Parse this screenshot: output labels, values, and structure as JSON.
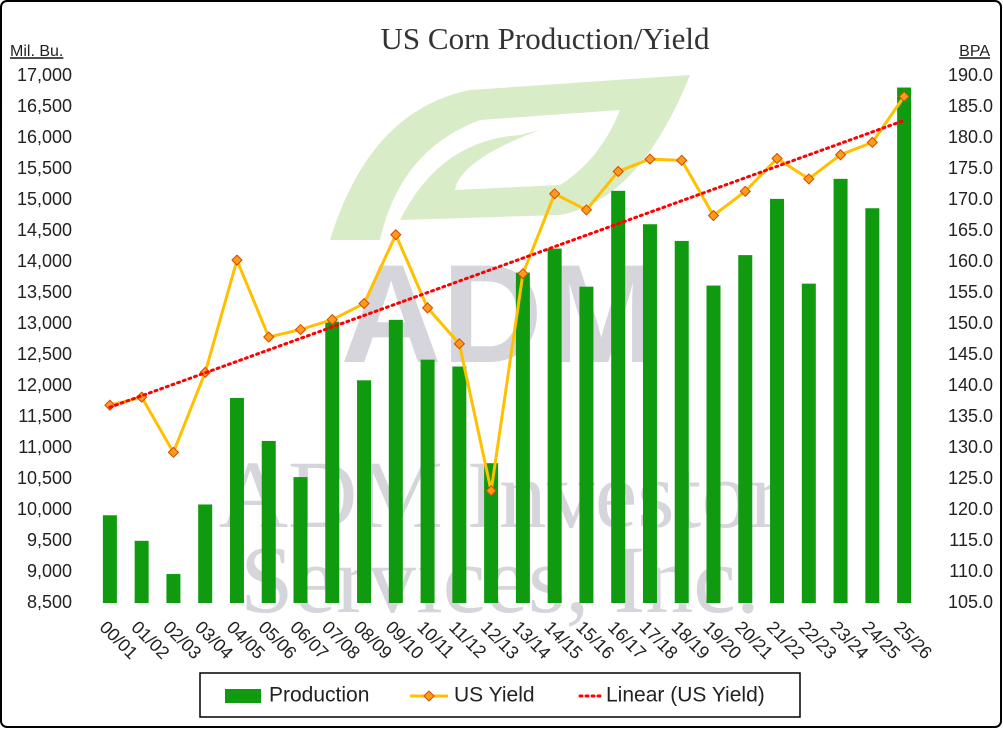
{
  "chart_data": {
    "type": "bar_line",
    "title": "US Corn Production/Yield",
    "y_label": "Mil. Bu.",
    "y2_label": "BPA",
    "watermark": [
      "ADM",
      "ADM Investor",
      "Services, Inc."
    ],
    "categories": [
      "00/01",
      "01/02",
      "02/03",
      "03/04",
      "04/05",
      "05/06",
      "06/07",
      "07/08",
      "08/09",
      "09/10",
      "10/11",
      "11/12",
      "12/13",
      "13/14",
      "14/15",
      "15/16",
      "16/17",
      "17/18",
      "18/19",
      "19/20",
      "20/21",
      "21/22",
      "22/23",
      "23/24",
      "24/25",
      "25/26"
    ],
    "series": [
      {
        "name": "Production",
        "type": "bar",
        "color": "#0f9a0f",
        "values": [
          9915,
          9503,
          8967,
          10089,
          11807,
          11114,
          10531,
          13038,
          12092,
          13067,
          12425,
          12314,
          10755,
          13829,
          14216,
          13602,
          15148,
          14609,
          14340,
          13620,
          14111,
          15018,
          13651,
          15341,
          14867,
          16814
        ]
      },
      {
        "name": "US Yield",
        "type": "line",
        "axis": "y2",
        "color": "#ffc000",
        "marker_color": "#ff9a1a",
        "values": [
          136.9,
          138.2,
          129.3,
          142.2,
          160.3,
          147.9,
          149.1,
          150.7,
          153.3,
          164.4,
          152.6,
          146.8,
          123.1,
          158.1,
          171.0,
          168.4,
          174.6,
          176.6,
          176.4,
          167.5,
          171.4,
          176.7,
          173.4,
          177.3,
          179.3,
          186.7
        ]
      },
      {
        "name": "Linear (US Yield)",
        "type": "trendline",
        "axis": "y2",
        "color": "#ff0000",
        "trend_of": "US Yield"
      }
    ],
    "ylim": [
      8500,
      17000
    ],
    "yticks": [
      {
        "value": 8500,
        "label": "8,500"
      },
      {
        "value": 9000,
        "label": "9,000"
      },
      {
        "value": 9500,
        "label": "9,500"
      },
      {
        "value": 10000,
        "label": "10,000"
      },
      {
        "value": 10500,
        "label": "10,500"
      },
      {
        "value": 11000,
        "label": "11,000"
      },
      {
        "value": 11500,
        "label": "11,500"
      },
      {
        "value": 12000,
        "label": "12,000"
      },
      {
        "value": 12500,
        "label": "12,500"
      },
      {
        "value": 13000,
        "label": "13,000"
      },
      {
        "value": 13500,
        "label": "13,500"
      },
      {
        "value": 14000,
        "label": "14,000"
      },
      {
        "value": 14500,
        "label": "14,500"
      },
      {
        "value": 15000,
        "label": "15,000"
      },
      {
        "value": 15500,
        "label": "15,500"
      },
      {
        "value": 16000,
        "label": "16,000"
      },
      {
        "value": 16500,
        "label": "16,500"
      },
      {
        "value": 17000,
        "label": "17,000"
      }
    ],
    "y2lim": [
      105,
      190
    ],
    "y2ticks": [
      {
        "value": 105,
        "label": "105.0"
      },
      {
        "value": 110,
        "label": "110.0"
      },
      {
        "value": 115,
        "label": "115.0"
      },
      {
        "value": 120,
        "label": "120.0"
      },
      {
        "value": 125,
        "label": "125.0"
      },
      {
        "value": 130,
        "label": "130.0"
      },
      {
        "value": 135,
        "label": "135.0"
      },
      {
        "value": 140,
        "label": "140.0"
      },
      {
        "value": 145,
        "label": "145.0"
      },
      {
        "value": 150,
        "label": "150.0"
      },
      {
        "value": 155,
        "label": "155.0"
      },
      {
        "value": 160,
        "label": "160.0"
      },
      {
        "value": 165,
        "label": "165.0"
      },
      {
        "value": 170,
        "label": "170.0"
      },
      {
        "value": 175,
        "label": "175.0"
      },
      {
        "value": 180,
        "label": "180.0"
      },
      {
        "value": 185,
        "label": "185.0"
      },
      {
        "value": 190,
        "label": "190.0"
      }
    ],
    "grid": false,
    "legend": "bottom"
  }
}
